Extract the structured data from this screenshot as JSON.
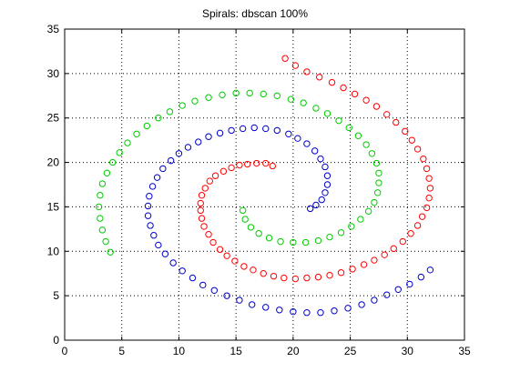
{
  "chart_data": {
    "type": "scatter",
    "title": "Spirals: dbscan  100%",
    "xlabel": "",
    "ylabel": "",
    "xlim": [
      0,
      35
    ],
    "ylim": [
      0,
      35
    ],
    "xticks": [
      0,
      5,
      10,
      15,
      20,
      25,
      30,
      35
    ],
    "yticks": [
      0,
      5,
      10,
      15,
      20,
      25,
      30,
      35
    ],
    "grid": true,
    "marker": "open-circle",
    "series": [
      {
        "color": "#ff0000",
        "points": [
          [
            18.2,
            19.6
          ],
          [
            17.6,
            19.9
          ],
          [
            16.8,
            19.9
          ],
          [
            16.0,
            19.8
          ],
          [
            15.3,
            19.7
          ],
          [
            14.6,
            19.4
          ],
          [
            13.9,
            19.0
          ],
          [
            13.2,
            18.5
          ],
          [
            12.7,
            17.9
          ],
          [
            12.3,
            17.1
          ],
          [
            12.0,
            16.3
          ],
          [
            11.9,
            15.4
          ],
          [
            11.9,
            14.6
          ],
          [
            12.0,
            13.7
          ],
          [
            12.2,
            12.8
          ],
          [
            12.6,
            11.9
          ],
          [
            13.0,
            11.0
          ],
          [
            13.6,
            10.2
          ],
          [
            14.2,
            9.5
          ],
          [
            14.9,
            8.9
          ],
          [
            15.7,
            8.3
          ],
          [
            16.5,
            7.9
          ],
          [
            17.4,
            7.5
          ],
          [
            18.3,
            7.2
          ],
          [
            19.2,
            7.0
          ],
          [
            20.2,
            6.9
          ],
          [
            21.2,
            7.0
          ],
          [
            22.2,
            7.1
          ],
          [
            23.2,
            7.3
          ],
          [
            24.2,
            7.6
          ],
          [
            25.2,
            8.0
          ],
          [
            26.2,
            8.5
          ],
          [
            27.1,
            9.0
          ],
          [
            28.0,
            9.6
          ],
          [
            28.8,
            10.3
          ],
          [
            29.6,
            11.1
          ],
          [
            30.3,
            12.0
          ],
          [
            30.9,
            12.9
          ],
          [
            31.3,
            13.9
          ],
          [
            31.7,
            14.9
          ],
          [
            31.9,
            16.0
          ],
          [
            32.0,
            17.1
          ],
          [
            31.9,
            18.2
          ],
          [
            31.7,
            19.3
          ],
          [
            31.4,
            20.4
          ],
          [
            30.9,
            21.5
          ],
          [
            30.4,
            22.5
          ],
          [
            29.8,
            23.5
          ],
          [
            29.0,
            24.5
          ],
          [
            28.2,
            25.4
          ],
          [
            27.3,
            26.3
          ],
          [
            26.4,
            27.0
          ],
          [
            25.4,
            27.7
          ],
          [
            24.4,
            28.4
          ],
          [
            23.4,
            29.0
          ],
          [
            22.3,
            29.6
          ],
          [
            21.2,
            30.2
          ],
          [
            20.2,
            30.9
          ],
          [
            19.3,
            31.7
          ]
        ]
      },
      {
        "color": "#0000cc",
        "points": [
          [
            21.5,
            14.8
          ],
          [
            22.0,
            15.2
          ],
          [
            22.5,
            15.8
          ],
          [
            22.8,
            16.6
          ],
          [
            23.0,
            17.5
          ],
          [
            23.0,
            18.5
          ],
          [
            22.8,
            19.5
          ],
          [
            22.4,
            20.4
          ],
          [
            21.9,
            21.3
          ],
          [
            21.2,
            22.1
          ],
          [
            20.4,
            22.7
          ],
          [
            19.6,
            23.2
          ],
          [
            18.6,
            23.6
          ],
          [
            17.6,
            23.8
          ],
          [
            16.6,
            23.9
          ],
          [
            15.6,
            23.8
          ],
          [
            14.6,
            23.6
          ],
          [
            13.6,
            23.3
          ],
          [
            12.6,
            22.9
          ],
          [
            11.7,
            22.3
          ],
          [
            10.8,
            21.7
          ],
          [
            10.0,
            21.0
          ],
          [
            9.3,
            20.2
          ],
          [
            8.6,
            19.3
          ],
          [
            8.1,
            18.3
          ],
          [
            7.7,
            17.3
          ],
          [
            7.4,
            16.2
          ],
          [
            7.3,
            15.1
          ],
          [
            7.3,
            14.0
          ],
          [
            7.5,
            12.9
          ],
          [
            7.8,
            11.8
          ],
          [
            8.2,
            10.7
          ],
          [
            8.8,
            9.7
          ],
          [
            9.5,
            8.7
          ],
          [
            10.3,
            7.8
          ],
          [
            11.2,
            7.0
          ],
          [
            12.1,
            6.2
          ],
          [
            13.1,
            5.6
          ],
          [
            14.2,
            5.0
          ],
          [
            15.3,
            4.5
          ],
          [
            16.4,
            4.0
          ],
          [
            17.6,
            3.7
          ],
          [
            18.8,
            3.4
          ],
          [
            20.0,
            3.2
          ],
          [
            21.2,
            3.1
          ],
          [
            22.4,
            3.1
          ],
          [
            23.6,
            3.3
          ],
          [
            24.8,
            3.6
          ],
          [
            26.0,
            4.0
          ],
          [
            27.1,
            4.5
          ],
          [
            28.2,
            5.1
          ],
          [
            29.2,
            5.7
          ],
          [
            30.2,
            6.3
          ],
          [
            31.2,
            7.1
          ],
          [
            32.0,
            7.9
          ]
        ]
      },
      {
        "color": "#00cc00",
        "points": [
          [
            15.6,
            14.6
          ],
          [
            15.8,
            13.6
          ],
          [
            16.3,
            12.7
          ],
          [
            17.0,
            12.0
          ],
          [
            17.9,
            11.5
          ],
          [
            18.9,
            11.1
          ],
          [
            20.0,
            11.0
          ],
          [
            21.1,
            11.0
          ],
          [
            22.2,
            11.2
          ],
          [
            23.2,
            11.6
          ],
          [
            24.2,
            12.1
          ],
          [
            25.1,
            12.8
          ],
          [
            25.9,
            13.6
          ],
          [
            26.6,
            14.5
          ],
          [
            27.1,
            15.5
          ],
          [
            27.4,
            16.6
          ],
          [
            27.5,
            17.7
          ],
          [
            27.5,
            18.8
          ],
          [
            27.3,
            19.9
          ],
          [
            26.9,
            21.0
          ],
          [
            26.4,
            22.0
          ],
          [
            25.7,
            23.0
          ],
          [
            24.9,
            23.9
          ],
          [
            24.0,
            24.7
          ],
          [
            23.0,
            25.5
          ],
          [
            22.0,
            26.1
          ],
          [
            20.9,
            26.7
          ],
          [
            19.8,
            27.1
          ],
          [
            18.6,
            27.5
          ],
          [
            17.4,
            27.7
          ],
          [
            16.2,
            27.8
          ],
          [
            15.0,
            27.8
          ],
          [
            13.8,
            27.6
          ],
          [
            12.6,
            27.3
          ],
          [
            11.4,
            26.9
          ],
          [
            10.3,
            26.4
          ],
          [
            9.2,
            25.7
          ],
          [
            8.2,
            25.0
          ],
          [
            7.2,
            24.1
          ],
          [
            6.3,
            23.2
          ],
          [
            5.5,
            22.2
          ],
          [
            4.8,
            21.1
          ],
          [
            4.2,
            20.0
          ],
          [
            3.7,
            18.8
          ],
          [
            3.3,
            17.6
          ],
          [
            3.1,
            16.3
          ],
          [
            3.0,
            15.0
          ],
          [
            3.1,
            13.7
          ],
          [
            3.3,
            12.4
          ],
          [
            3.6,
            11.1
          ],
          [
            4.0,
            9.9
          ]
        ]
      }
    ]
  }
}
